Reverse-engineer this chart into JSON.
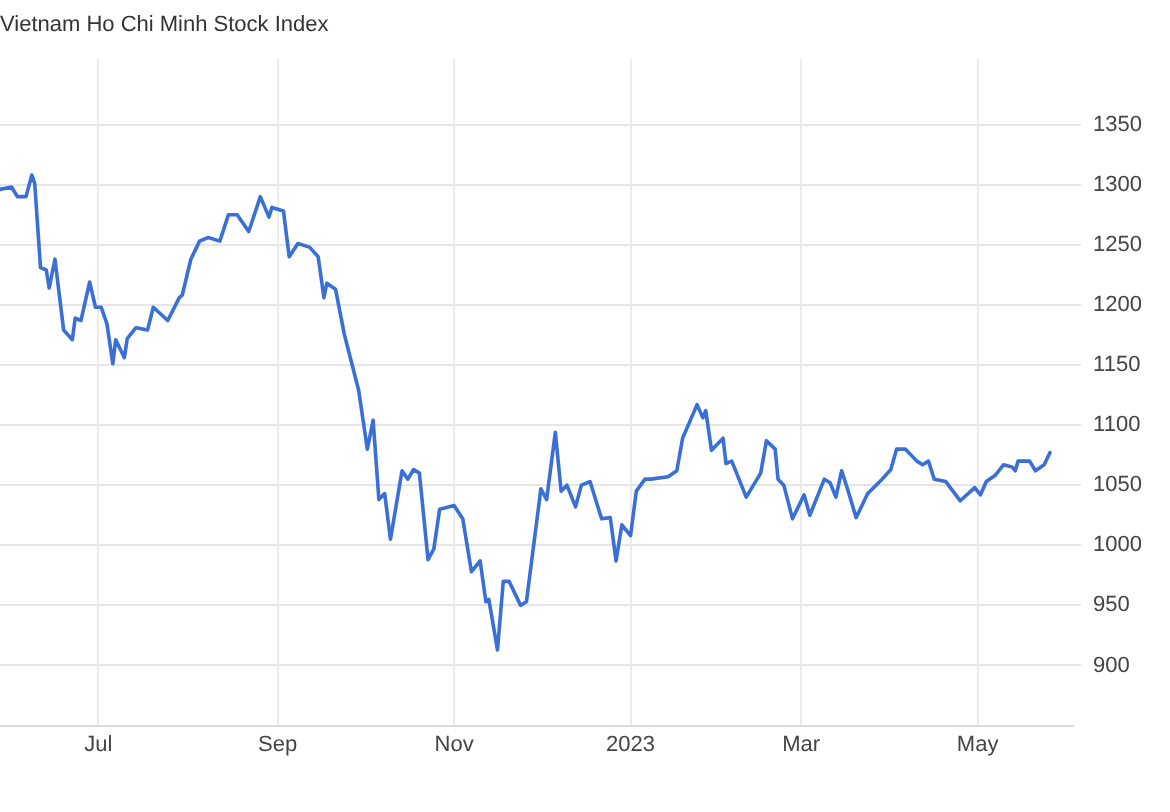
{
  "chart_data": {
    "type": "line",
    "title": "Vietnam Ho Chi Minh Stock Index",
    "x": [
      "2022-05-28",
      "2022-06-01",
      "2022-06-03",
      "2022-06-06",
      "2022-06-08",
      "2022-06-09",
      "2022-06-11",
      "2022-06-13",
      "2022-06-14",
      "2022-06-16",
      "2022-06-19",
      "2022-06-22",
      "2022-06-23",
      "2022-06-25",
      "2022-06-28",
      "2022-06-30",
      "2022-07-02",
      "2022-07-04",
      "2022-07-06",
      "2022-07-07",
      "2022-07-10",
      "2022-07-11",
      "2022-07-14",
      "2022-07-18",
      "2022-07-20",
      "2022-07-25",
      "2022-07-29",
      "2022-07-30",
      "2022-08-02",
      "2022-08-05",
      "2022-08-08",
      "2022-08-12",
      "2022-08-15",
      "2022-08-18",
      "2022-08-22",
      "2022-08-26",
      "2022-08-29",
      "2022-08-30",
      "2022-09-03",
      "2022-09-05",
      "2022-09-08",
      "2022-09-12",
      "2022-09-15",
      "2022-09-17",
      "2022-09-18",
      "2022-09-21",
      "2022-09-24",
      "2022-09-29",
      "2022-10-02",
      "2022-10-04",
      "2022-10-06",
      "2022-10-08",
      "2022-10-10",
      "2022-10-14",
      "2022-10-16",
      "2022-10-18",
      "2022-10-20",
      "2022-10-23",
      "2022-10-25",
      "2022-10-27",
      "2022-11-01",
      "2022-11-04",
      "2022-11-07",
      "2022-11-10",
      "2022-11-12",
      "2022-11-13",
      "2022-11-16",
      "2022-11-18",
      "2022-11-20",
      "2022-11-24",
      "2022-11-26",
      "2022-11-30",
      "2022-12-01",
      "2022-12-03",
      "2022-12-06",
      "2022-12-08",
      "2022-12-10",
      "2022-12-13",
      "2022-12-15",
      "2022-12-18",
      "2022-12-22",
      "2022-12-25",
      "2022-12-27",
      "2022-12-29",
      "2023-01-01",
      "2023-01-03",
      "2023-01-06",
      "2023-01-08",
      "2023-01-14",
      "2023-01-17",
      "2023-01-19",
      "2023-01-24",
      "2023-01-26",
      "2023-01-27",
      "2023-01-29",
      "2023-02-02",
      "2023-02-03",
      "2023-02-05",
      "2023-02-10",
      "2023-02-15",
      "2023-02-17",
      "2023-02-20",
      "2023-02-21",
      "2023-02-23",
      "2023-02-26",
      "2023-03-02",
      "2023-03-04",
      "2023-03-09",
      "2023-03-11",
      "2023-03-13",
      "2023-03-15",
      "2023-03-17",
      "2023-03-20",
      "2023-03-24",
      "2023-03-29",
      "2023-04-01",
      "2023-04-03",
      "2023-04-06",
      "2023-04-10",
      "2023-04-12",
      "2023-04-14",
      "2023-04-16",
      "2023-04-20",
      "2023-04-25",
      "2023-04-30",
      "2023-05-02",
      "2023-05-04",
      "2023-05-07",
      "2023-05-10",
      "2023-05-13",
      "2023-05-14",
      "2023-05-15",
      "2023-05-19",
      "2023-05-21",
      "2023-05-24",
      "2023-05-26"
    ],
    "series": [
      {
        "color": "#3a6fd8",
        "values": [
          1296,
          1298,
          1290,
          1290,
          1308,
          1301,
          1231,
          1229,
          1214,
          1238,
          1179,
          1171,
          1189,
          1187,
          1219,
          1198,
          1198,
          1184,
          1151,
          1171,
          1156,
          1172,
          1181,
          1179,
          1198,
          1187,
          1206,
          1208,
          1238,
          1253,
          1256,
          1253,
          1275,
          1275,
          1261,
          1290,
          1273,
          1281,
          1278,
          1240,
          1251,
          1248,
          1240,
          1206,
          1218,
          1213,
          1176,
          1129,
          1080,
          1104,
          1038,
          1043,
          1005,
          1062,
          1055,
          1063,
          1060,
          988,
          997,
          1030,
          1033,
          1022,
          978,
          987,
          953,
          955,
          913,
          970,
          970,
          950,
          953,
          1028,
          1047,
          1038,
          1094,
          1045,
          1050,
          1032,
          1050,
          1053,
          1022,
          1023,
          987,
          1017,
          1008,
          1045,
          1055,
          1055,
          1057,
          1062,
          1089,
          1117,
          1106,
          1112,
          1079,
          1089,
          1068,
          1070,
          1040,
          1060,
          1087,
          1080,
          1055,
          1050,
          1022,
          1042,
          1025,
          1055,
          1052,
          1040,
          1062,
          1047,
          1023,
          1043,
          1055,
          1063,
          1080,
          1080,
          1070,
          1067,
          1070,
          1055,
          1053,
          1037,
          1048,
          1042,
          1053,
          1058,
          1067,
          1065,
          1062,
          1070,
          1070,
          1062,
          1067,
          1077
        ]
      }
    ],
    "xlim": [
      "2022-05-28",
      "2023-06-03"
    ],
    "xticks": [
      {
        "value": "2022-07-01",
        "label": "Jul"
      },
      {
        "value": "2022-09-01",
        "label": "Sep"
      },
      {
        "value": "2022-11-01",
        "label": "Nov"
      },
      {
        "value": "2023-01-01",
        "label": "2023"
      },
      {
        "value": "2023-03-01",
        "label": "Mar"
      },
      {
        "value": "2023-05-01",
        "label": "May"
      }
    ],
    "ylim": [
      850,
      1405
    ],
    "yticks": [
      900,
      950,
      1000,
      1050,
      1100,
      1150,
      1200,
      1250,
      1300,
      1350
    ],
    "grid": true,
    "marker": "none",
    "line_style": "solid"
  }
}
